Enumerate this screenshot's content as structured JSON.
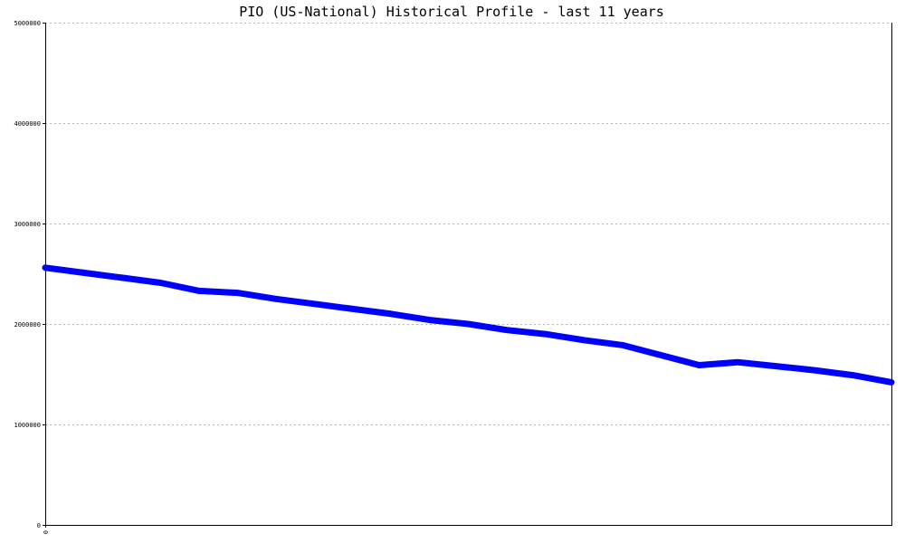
{
  "chart_data": {
    "type": "line",
    "title": "PIO (US-National) Historical Profile - last 11 years",
    "xlabel": "",
    "ylabel": "",
    "ylim": [
      0,
      5000000
    ],
    "yticks": [
      0,
      1000000,
      2000000,
      3000000,
      4000000,
      5000000
    ],
    "ytick_labels": [
      "0",
      "1000000",
      "2000000",
      "3000000",
      "4000000",
      "5000000"
    ],
    "xlim": [
      0,
      22
    ],
    "xtick_labels": [
      "0"
    ],
    "grid": true,
    "series": [
      {
        "color": "#0000ff",
        "x": [
          0,
          1,
          2,
          3,
          4,
          5,
          6,
          7,
          8,
          9,
          10,
          11,
          12,
          13,
          14,
          15,
          16,
          17,
          18,
          19,
          20,
          21,
          22
        ],
        "values": [
          2560000,
          2510000,
          2460000,
          2410000,
          2330000,
          2310000,
          2250000,
          2200000,
          2150000,
          2100000,
          2040000,
          2000000,
          1940000,
          1900000,
          1840000,
          1790000,
          1690000,
          1590000,
          1620000,
          1580000,
          1540000,
          1490000,
          1420000
        ]
      }
    ]
  }
}
